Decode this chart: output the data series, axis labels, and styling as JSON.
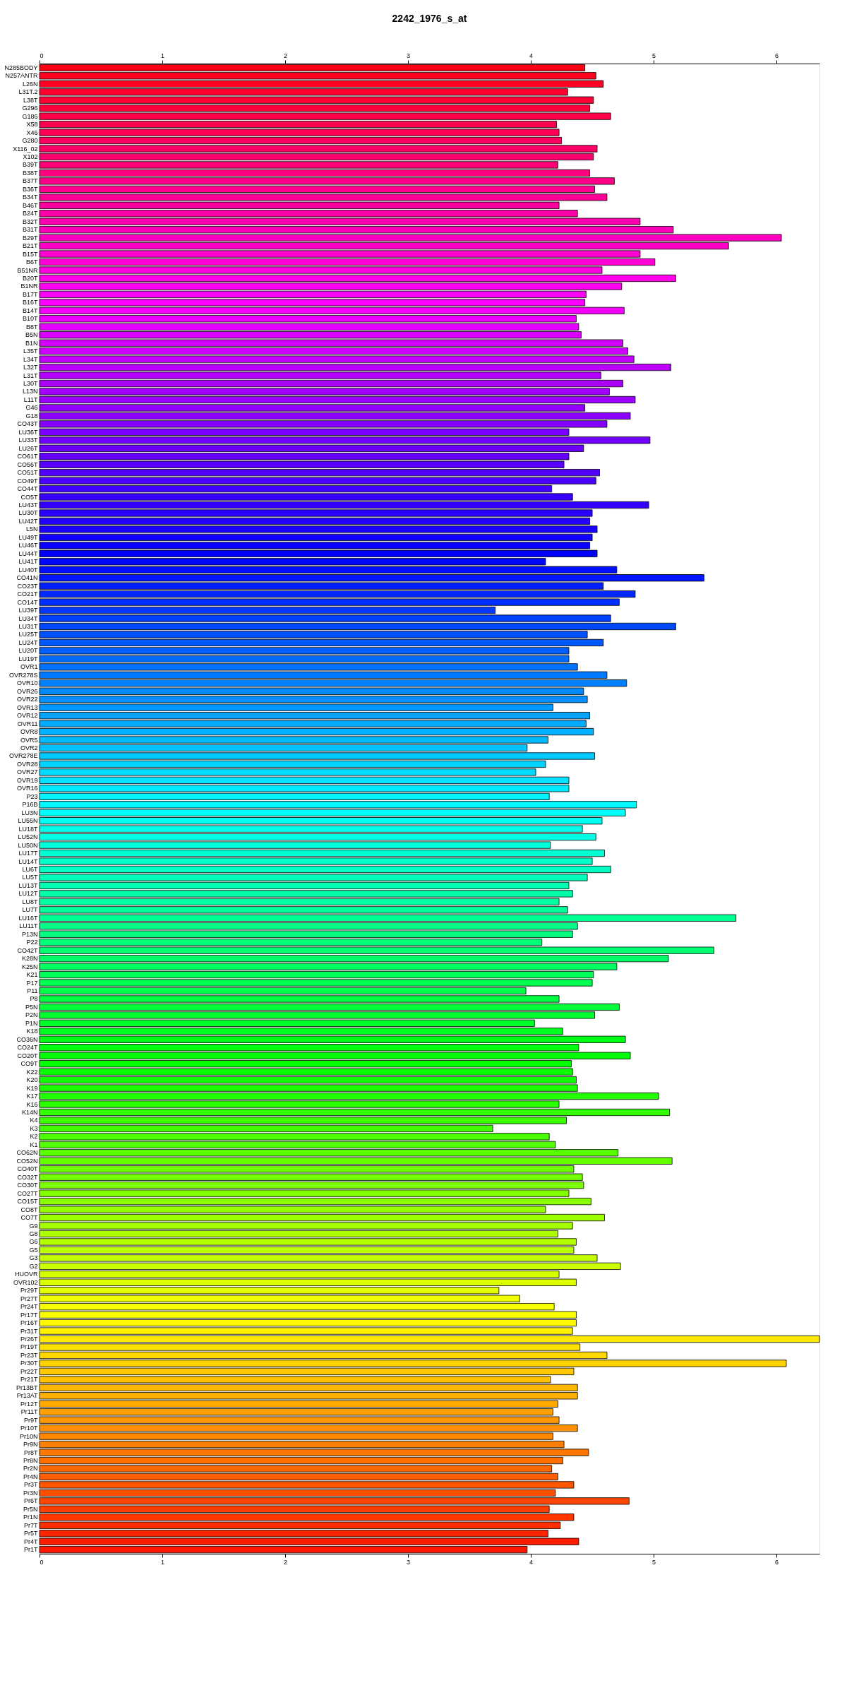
{
  "chart_data": {
    "type": "bar",
    "orientation": "horizontal",
    "title": "2242_1976_s_at",
    "categories": [
      "N285BODY",
      "N257ANTR",
      "L26N",
      "L31T.2",
      "L38T",
      "G296",
      "G186",
      "X58",
      "X46",
      "G280",
      "X116_02",
      "X102",
      "B39T",
      "B38T",
      "B37T",
      "B36T",
      "B34T",
      "B46T",
      "B24T",
      "B32T",
      "B31T",
      "B29T",
      "B21T",
      "B15T",
      "B6T",
      "B51NR",
      "B20T",
      "B1NR",
      "B17T",
      "B16T",
      "B14T",
      "B10T",
      "B8T",
      "B5N",
      "B1N",
      "L35T",
      "L34T",
      "L32T",
      "L31T",
      "L30T",
      "L13N",
      "L11T",
      "G46",
      "G18",
      "CO43T",
      "LU36T",
      "LU33T",
      "LU26T",
      "CO61T",
      "CO56T",
      "CO51T",
      "CO49T",
      "CO44T",
      "CO5T",
      "LU43T",
      "LU30T",
      "LU42T",
      "L5N",
      "LU49T",
      "LU46T",
      "LU44T",
      "LU41T",
      "LU40T",
      "CO41N",
      "CO23T",
      "CO21T",
      "CO14T",
      "LU39T",
      "LU34T",
      "LU31T",
      "LU25T",
      "LU24T",
      "LU20T",
      "LU19T",
      "OVR1",
      "OVR278S",
      "OVR10",
      "OVR26",
      "OVR22",
      "OVR13",
      "OVR12",
      "OVR11",
      "OVR8",
      "OVR5",
      "OVR2",
      "OVR278E",
      "OVR28",
      "OVR27",
      "OVR19",
      "OVR16",
      "P23",
      "P16B",
      "LU3N",
      "LU55N",
      "LU18T",
      "LU52N",
      "LU50N",
      "LU17T",
      "LU14T",
      "LU6T",
      "LU5T",
      "LU13T",
      "LU12T",
      "LU8T",
      "LU7T",
      "LU16T",
      "LU11T",
      "P13N",
      "P22",
      "CO42T",
      "K28N",
      "K25N",
      "K21",
      "P17",
      "P11",
      "P8",
      "P5N",
      "P2N",
      "P1N",
      "K18",
      "CO36N",
      "CO24T",
      "CO20T",
      "CO9T",
      "K22",
      "K20",
      "K19",
      "K17",
      "K16",
      "K14N",
      "K4",
      "K3",
      "K2",
      "K1",
      "CO62N",
      "CO52N",
      "CO40T",
      "CO32T",
      "CO30T",
      "CO27T",
      "CO15T",
      "CO8T",
      "CO7T",
      "G9",
      "G8",
      "G6",
      "G5",
      "G3",
      "G2",
      "HUOVR",
      "OVR102",
      "Pr29T",
      "Pr27T",
      "Pr24T",
      "Pr17T",
      "Pr16T",
      "Pr31T",
      "Pr26T",
      "Pr19T",
      "Pr23T",
      "Pr30T",
      "Pr22T",
      "Pr21T",
      "Pr13BT",
      "Pr13AT",
      "Pr12T",
      "Pr11T",
      "Pr9T",
      "Pr10T",
      "Pr10N",
      "Pr9N",
      "Pr8T",
      "Pr8N",
      "Pr2N",
      "Pr4N",
      "Pr3T",
      "Pr3N",
      "Pr6T",
      "Pr5N",
      "Pr1N",
      "Pr7T",
      "Pr5T",
      "Pr4T",
      "Pr1T"
    ],
    "values": [
      4.44,
      4.53,
      4.59,
      4.3,
      4.51,
      4.48,
      4.65,
      4.21,
      4.23,
      4.25,
      4.54,
      4.51,
      4.22,
      4.48,
      4.68,
      4.52,
      4.62,
      4.23,
      4.38,
      4.89,
      5.16,
      6.04,
      5.61,
      4.89,
      5.01,
      4.58,
      5.18,
      4.74,
      4.45,
      4.44,
      4.76,
      4.37,
      4.39,
      4.41,
      4.75,
      4.79,
      4.84,
      5.14,
      4.57,
      4.75,
      4.64,
      4.85,
      4.44,
      4.81,
      4.62,
      4.31,
      4.97,
      4.43,
      4.31,
      4.27,
      4.56,
      4.53,
      4.17,
      4.34,
      4.96,
      4.5,
      4.48,
      4.54,
      4.5,
      4.48,
      4.54,
      4.12,
      4.7,
      5.41,
      4.59,
      4.85,
      4.72,
      3.71,
      4.65,
      5.18,
      4.46,
      4.59,
      4.31,
      4.31,
      4.38,
      4.62,
      4.78,
      4.43,
      4.46,
      4.18,
      4.48,
      4.45,
      4.51,
      4.14,
      3.97,
      4.52,
      4.12,
      4.04,
      4.31,
      4.31,
      4.15,
      4.86,
      4.77,
      4.58,
      4.42,
      4.53,
      4.16,
      4.6,
      4.5,
      4.65,
      4.46,
      4.31,
      4.34,
      4.23,
      4.3,
      5.67,
      4.38,
      4.34,
      4.09,
      5.49,
      5.12,
      4.7,
      4.51,
      4.5,
      3.96,
      4.23,
      4.72,
      4.52,
      4.03,
      4.26,
      4.77,
      4.39,
      4.81,
      4.33,
      4.34,
      4.37,
      4.38,
      5.04,
      4.23,
      5.13,
      4.29,
      3.69,
      4.15,
      4.2,
      4.71,
      5.15,
      4.35,
      4.42,
      4.43,
      4.31,
      4.49,
      4.12,
      4.6,
      4.34,
      4.22,
      4.37,
      4.35,
      4.54,
      4.73,
      4.23,
      4.37,
      3.74,
      3.91,
      4.19,
      4.37,
      4.37,
      4.34,
      6.35,
      4.4,
      4.62,
      6.08,
      4.35,
      4.16,
      4.38,
      4.38,
      4.22,
      4.18,
      4.23,
      4.38,
      4.18,
      4.27,
      4.47,
      4.26,
      4.17,
      4.22,
      4.35,
      4.2,
      4.8,
      4.15,
      4.35,
      4.24,
      4.14,
      4.39,
      3.97
    ],
    "colors": [
      "#ff0015",
      "#ff001d",
      "#ff0025",
      "#ff002e",
      "#ff0036",
      "#ff003e",
      "#ff0046",
      "#ff004e",
      "#ff0056",
      "#ff005e",
      "#ff0067",
      "#ff006f",
      "#ff0077",
      "#ff007f",
      "#ff0087",
      "#ff008f",
      "#ff0097",
      "#ff009f",
      "#ff00a8",
      "#ff00b0",
      "#ff00b8",
      "#ff00c0",
      "#ff00c8",
      "#ff00d0",
      "#ff00d8",
      "#ff00e0",
      "#ff00e9",
      "#ff00f1",
      "#ff00f9",
      "#fd00ff",
      "#f500ff",
      "#ed00ff",
      "#e500ff",
      "#dc00ff",
      "#d400ff",
      "#cc00ff",
      "#c400ff",
      "#bc00ff",
      "#b400ff",
      "#ac00ff",
      "#a400ff",
      "#9b00ff",
      "#9300ff",
      "#8b00ff",
      "#8300ff",
      "#7b00ff",
      "#7300ff",
      "#6b00ff",
      "#6300ff",
      "#5a00ff",
      "#5200ff",
      "#4a00ff",
      "#4200ff",
      "#3a00ff",
      "#3200ff",
      "#2a00ff",
      "#2200ff",
      "#1900ff",
      "#1100ff",
      "#0900ff",
      "#0100ff",
      "#0007ff",
      "#000fff",
      "#0017ff",
      "#001fff",
      "#0028ff",
      "#0030ff",
      "#0038ff",
      "#0040ff",
      "#0048ff",
      "#0050ff",
      "#0058ff",
      "#0060ff",
      "#0069ff",
      "#0071ff",
      "#0079ff",
      "#0081ff",
      "#0089ff",
      "#0091ff",
      "#0099ff",
      "#00a1ff",
      "#00aaff",
      "#00b2ff",
      "#00baff",
      "#00c2ff",
      "#00caff",
      "#00d2ff",
      "#00daff",
      "#00e2ff",
      "#00ebff",
      "#00f3ff",
      "#00fbff",
      "#00fffb",
      "#00fff3",
      "#00ffeb",
      "#00ffe3",
      "#00ffda",
      "#00ffd2",
      "#00ffca",
      "#00ffc2",
      "#00ffba",
      "#00ffb2",
      "#00ffaa",
      "#00ffa2",
      "#00ff99",
      "#00ff91",
      "#00ff89",
      "#00ff81",
      "#00ff79",
      "#00ff71",
      "#00ff69",
      "#00ff61",
      "#00ff58",
      "#00ff50",
      "#00ff48",
      "#00ff40",
      "#00ff38",
      "#00ff30",
      "#00ff28",
      "#00ff20",
      "#00ff17",
      "#00ff0f",
      "#00ff07",
      "#01ff00",
      "#09ff00",
      "#11ff00",
      "#19ff00",
      "#22ff00",
      "#2aff00",
      "#32ff00",
      "#3aff00",
      "#42ff00",
      "#4aff00",
      "#52ff00",
      "#5aff00",
      "#63ff00",
      "#6bff00",
      "#73ff00",
      "#7bff00",
      "#83ff00",
      "#8bff00",
      "#93ff00",
      "#9bff00",
      "#a4ff00",
      "#acff00",
      "#b4ff00",
      "#bcff00",
      "#c4ff00",
      "#ccff00",
      "#d4ff00",
      "#dcff00",
      "#e5ff00",
      "#edff00",
      "#f5ff00",
      "#fdff00",
      "#fff900",
      "#fff100",
      "#ffe900",
      "#ffe100",
      "#ffd800",
      "#ffd000",
      "#ffc800",
      "#ffc000",
      "#ffb800",
      "#ffb000",
      "#ffa800",
      "#ff9f00",
      "#ff9700",
      "#ff8f00",
      "#ff8700",
      "#ff7f00",
      "#ff7700",
      "#ff6f00",
      "#ff6700",
      "#ff5e00",
      "#ff5600",
      "#ff4e00",
      "#ff4600",
      "#ff3e00",
      "#ff3600",
      "#ff2e00",
      "#ff2500",
      "#ff1d00",
      "#ff1500"
    ],
    "xlim": [
      0,
      6.35
    ],
    "xticks": [
      0,
      1,
      2,
      3,
      4,
      5,
      6
    ],
    "x2lim": [
      0,
      6.35
    ],
    "x2ticks": [
      0,
      1,
      2,
      3,
      4,
      5,
      6
    ],
    "grid": false
  }
}
